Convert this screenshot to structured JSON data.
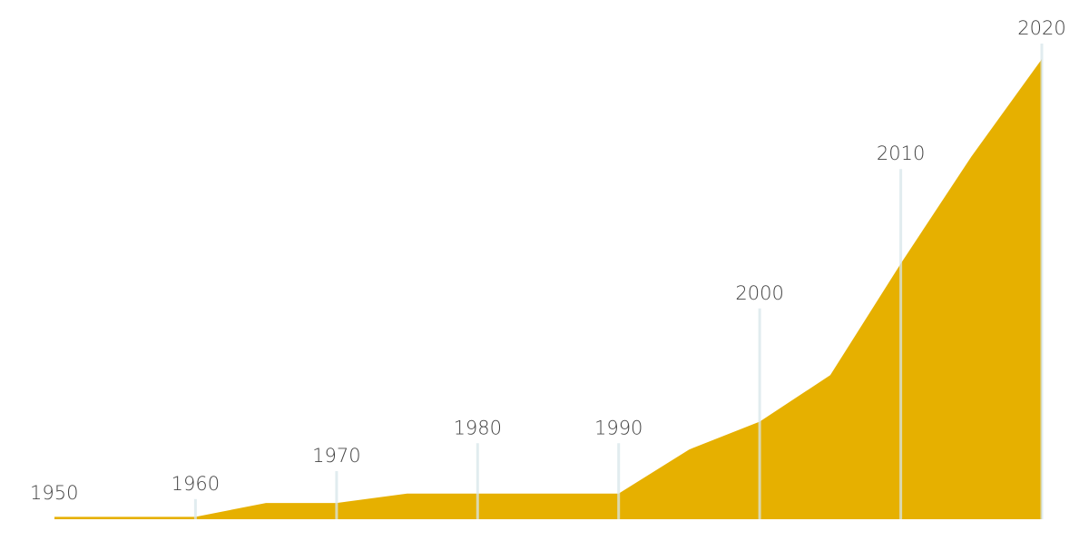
{
  "chart_data": {
    "type": "area",
    "title": "",
    "xlabel": "",
    "ylabel": "",
    "grid": false,
    "legend": "none",
    "x": [
      1950,
      1955,
      1960,
      1965,
      1970,
      1975,
      1980,
      1985,
      1990,
      1995,
      2000,
      2005,
      2010,
      2015,
      2020
    ],
    "values": [
      0.5,
      0.5,
      0.5,
      3.5,
      3.5,
      5.5,
      5.5,
      5.5,
      5.5,
      15,
      21,
      31,
      55,
      78,
      99
    ],
    "ylim": [
      0,
      100
    ],
    "tick_labels": [
      {
        "year": "1950",
        "marker_level": 0
      },
      {
        "year": "1960",
        "marker_level": 2
      },
      {
        "year": "1970",
        "marker_level": 8
      },
      {
        "year": "1980",
        "marker_level": 14
      },
      {
        "year": "1990",
        "marker_level": 14
      },
      {
        "year": "2000",
        "marker_level": 43
      },
      {
        "year": "2010",
        "marker_level": 73
      },
      {
        "year": "2020",
        "marker_level": 100
      }
    ],
    "colors": {
      "area": "#e6b000",
      "marker_line": "#d7e6ea",
      "label": "#444444"
    }
  }
}
